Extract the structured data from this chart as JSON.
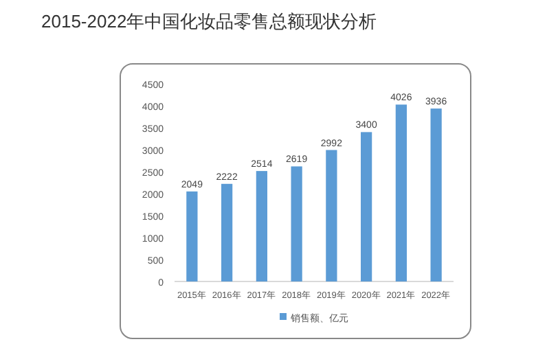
{
  "chart_data": {
    "type": "bar",
    "title": "2015-2022年中国化妆品零售总额现状分析",
    "categories": [
      "2015年",
      "2016年",
      "2017年",
      "2018年",
      "2019年",
      "2020年",
      "2021年",
      "2022年"
    ],
    "series": [
      {
        "name": "销售额、亿元",
        "color": "#5b9bd5",
        "values": [
          2049,
          2222,
          2514,
          2619,
          2992,
          3400,
          4026,
          3936
        ]
      }
    ],
    "ylim": [
      0,
      4500
    ],
    "yticks": [
      0,
      500,
      1000,
      1500,
      2000,
      2500,
      3000,
      3500,
      4000,
      4500
    ],
    "data_labels": true,
    "grid": false,
    "legend": "bottom"
  }
}
